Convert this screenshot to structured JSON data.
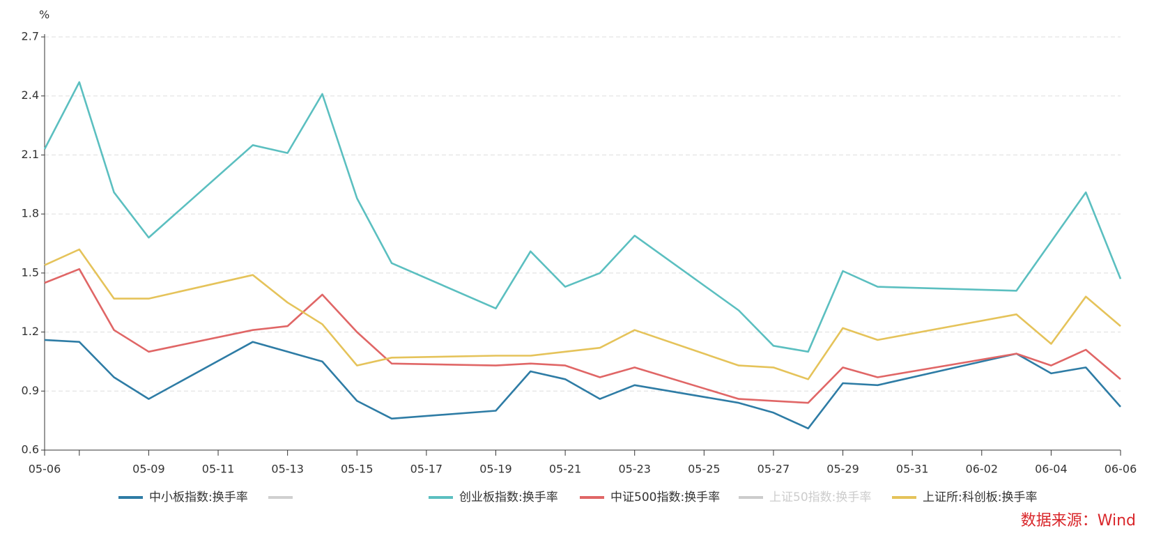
{
  "chart_data": {
    "type": "line",
    "y_unit": "%",
    "source": "数据来源：Wind",
    "x": [
      "05-06",
      "05-07",
      "05-08",
      "05-09",
      "05-12",
      "05-13",
      "05-14",
      "05-15",
      "05-16",
      "05-19",
      "05-20",
      "05-21",
      "05-22",
      "05-23",
      "05-26",
      "05-27",
      "05-28",
      "05-29",
      "05-30",
      "06-03",
      "06-04",
      "06-05",
      "06-06"
    ],
    "xlim": [
      "05-06",
      "06-06"
    ],
    "xticks": [
      "05-06",
      {
        "value": "05-07",
        "label": null
      },
      "05-09",
      "05-11",
      "05-13",
      "05-15",
      "05-17",
      "05-19",
      "05-21",
      "05-23",
      "05-25",
      "05-27",
      "05-29",
      "05-31",
      "06-02",
      "06-04",
      "06-06"
    ],
    "ylim": [
      0.6,
      2.7
    ],
    "yticks": [
      0.6,
      0.9,
      1.2,
      1.5,
      1.8,
      2.1,
      2.4,
      2.7
    ],
    "grid": true,
    "legend": "bottom",
    "series": [
      {
        "name": "中小板指数:换手率",
        "color": "#2e7ca5",
        "values": [
          1.16,
          1.15,
          0.97,
          0.86,
          1.15,
          1.1,
          1.05,
          0.85,
          0.76,
          0.8,
          1.0,
          0.96,
          0.86,
          0.93,
          0.84,
          0.79,
          0.71,
          0.94,
          0.93,
          1.09,
          0.99,
          1.02,
          0.82
        ]
      },
      {
        "name": "创业板指数:换手率",
        "color": "#5bbfc0",
        "values": [
          2.13,
          2.47,
          1.91,
          1.68,
          2.15,
          2.11,
          2.41,
          1.88,
          1.55,
          1.32,
          1.61,
          1.43,
          1.5,
          1.69,
          1.31,
          1.13,
          1.1,
          1.51,
          1.43,
          1.41,
          1.66,
          1.91,
          1.47
        ]
      },
      {
        "name": "中证500指数:换手率",
        "color": "#e06666",
        "values": [
          1.45,
          1.52,
          1.21,
          1.1,
          1.21,
          1.23,
          1.39,
          1.2,
          1.04,
          1.03,
          1.04,
          1.03,
          0.97,
          1.02,
          0.86,
          0.85,
          0.84,
          1.02,
          0.97,
          1.09,
          1.03,
          1.11,
          0.96
        ]
      },
      {
        "name": "上证50指数:换手率",
        "color": "#cccccc",
        "hidden": true,
        "values": [
          null,
          null,
          null,
          null,
          null,
          null,
          null,
          null,
          null,
          null,
          null,
          null,
          null,
          null,
          null,
          null,
          null,
          null,
          null,
          null,
          null,
          null,
          null
        ]
      },
      {
        "name": "上证所:科创板:换手率",
        "color": "#e5c35a",
        "values": [
          1.54,
          1.62,
          1.37,
          1.37,
          1.49,
          1.35,
          1.24,
          1.03,
          1.07,
          1.08,
          1.08,
          1.1,
          1.12,
          1.21,
          1.03,
          1.02,
          0.96,
          1.22,
          1.16,
          1.29,
          1.14,
          1.38,
          1.23
        ]
      }
    ]
  }
}
